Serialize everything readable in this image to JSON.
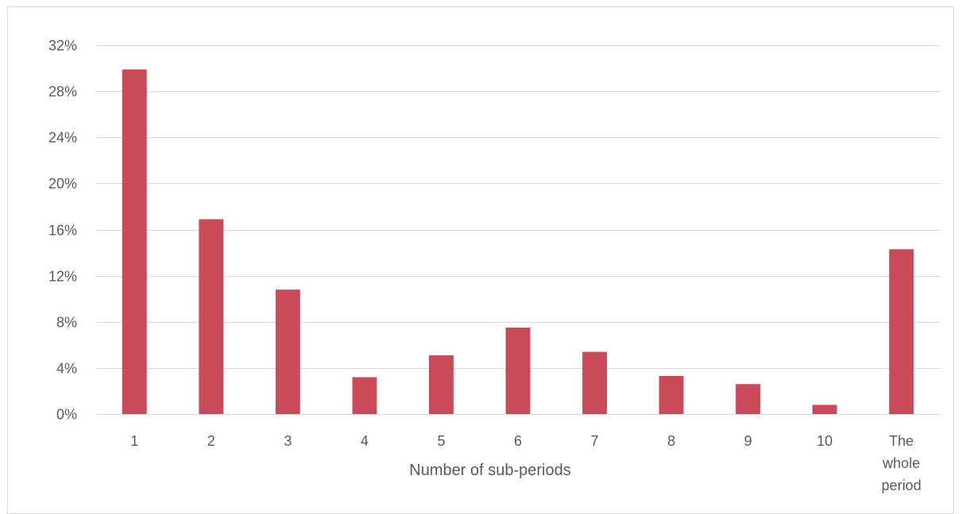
{
  "chart_data": {
    "type": "bar",
    "categories": [
      "1",
      "2",
      "3",
      "4",
      "5",
      "6",
      "7",
      "8",
      "9",
      "10",
      "The whole period"
    ],
    "category_lines": [
      [
        "1"
      ],
      [
        "2"
      ],
      [
        "3"
      ],
      [
        "4"
      ],
      [
        "5"
      ],
      [
        "6"
      ],
      [
        "7"
      ],
      [
        "8"
      ],
      [
        "9"
      ],
      [
        "10"
      ],
      [
        "The",
        "whole",
        "period"
      ]
    ],
    "values": [
      29.9,
      16.9,
      10.8,
      3.2,
      5.1,
      7.5,
      5.4,
      3.3,
      2.6,
      0.8,
      14.3
    ],
    "title": "",
    "xlabel": "Number of sub-periods",
    "ylabel": "",
    "ylim": [
      0,
      32
    ],
    "yticks": [
      0,
      4,
      8,
      12,
      16,
      20,
      24,
      28,
      32
    ],
    "ytick_labels": [
      "0%",
      "4%",
      "8%",
      "12%",
      "16%",
      "20%",
      "24%",
      "28%",
      "32%"
    ],
    "grid": true,
    "legend": "none",
    "bar_color": "#c94a59"
  }
}
